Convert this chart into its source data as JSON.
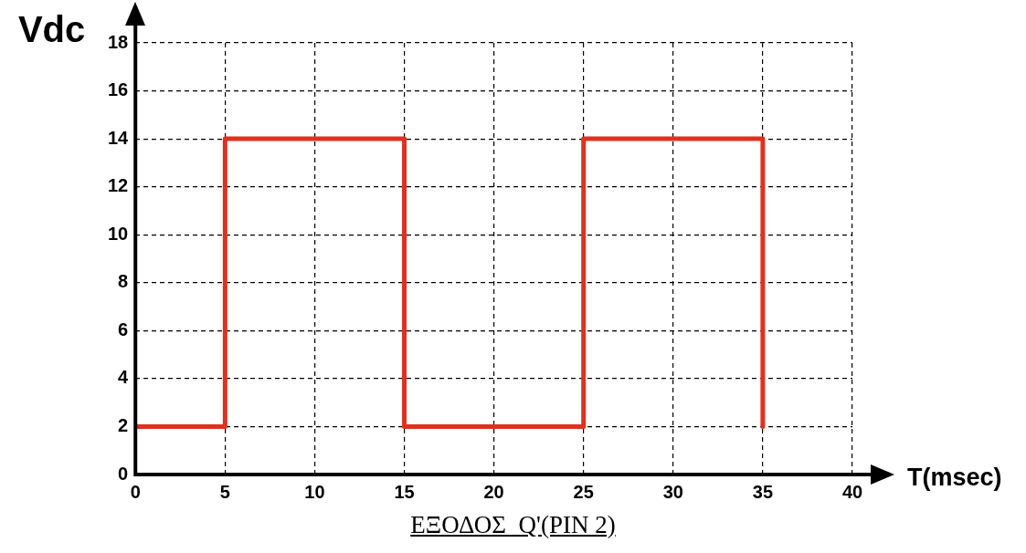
{
  "chart_data": {
    "type": "line",
    "xlabel": "T(msec)",
    "ylabel": "Vdc",
    "annotations": [
      "ΕΞΟΔΟΣ  Q'(PIN 2)"
    ],
    "x": [
      0,
      5,
      5,
      15,
      15,
      25,
      25,
      35,
      35
    ],
    "series": [
      {
        "color": "#e0301e",
        "values": [
          2,
          2,
          14,
          14,
          2,
          2,
          14,
          14,
          2
        ]
      }
    ],
    "xlim": [
      0,
      40
    ],
    "xticks": [
      0,
      5,
      10,
      15,
      20,
      25,
      30,
      35,
      40
    ],
    "ylim": [
      0,
      18
    ],
    "yticks": [
      0,
      2,
      4,
      6,
      8,
      10,
      12,
      14,
      16,
      18
    ],
    "grid": true,
    "legend": false,
    "marker": "none",
    "line_style": "solid"
  }
}
